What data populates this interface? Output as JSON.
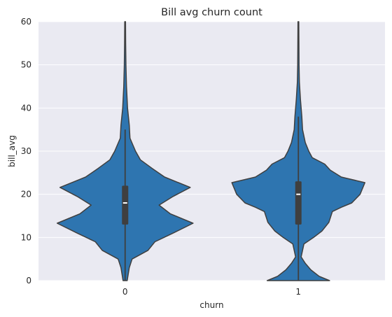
{
  "chart_data": {
    "type": "violin",
    "title": "Bill avg churn count",
    "xlabel": "churn",
    "ylabel": "bill_avg",
    "categories": [
      "0",
      "1"
    ],
    "ylim": [
      0,
      60
    ],
    "yticks": [
      "0",
      "10",
      "20",
      "30",
      "40",
      "50",
      "60"
    ],
    "grid": true,
    "colors": {
      "violin": "#2e75b0",
      "plot_bg": "#eaeaf2",
      "outline": "#3f3f3f"
    },
    "series": [
      {
        "category": "0",
        "q1": 13,
        "median": 18,
        "q3": 22,
        "whisker_low": 0,
        "whisker_high": 35,
        "density": [
          [
            0,
            0.03
          ],
          [
            1,
            0.04
          ],
          [
            3,
            0.06
          ],
          [
            5,
            0.1
          ],
          [
            7,
            0.33
          ],
          [
            9,
            0.43
          ],
          [
            11,
            0.69
          ],
          [
            13.3,
            0.98
          ],
          [
            15.5,
            0.65
          ],
          [
            17.5,
            0.49
          ],
          [
            19.5,
            0.69
          ],
          [
            21.6,
            0.94
          ],
          [
            24,
            0.57
          ],
          [
            26,
            0.39
          ],
          [
            28,
            0.22
          ],
          [
            30,
            0.15
          ],
          [
            33,
            0.07
          ],
          [
            36,
            0.06
          ],
          [
            40,
            0.035
          ],
          [
            45,
            0.02
          ],
          [
            50,
            0.012
          ],
          [
            55,
            0.008
          ],
          [
            60,
            0.006
          ]
        ]
      },
      {
        "category": "1",
        "q1": 13,
        "median": 20,
        "q3": 23,
        "whisker_low": 0,
        "whisker_high": 38,
        "density": [
          [
            0,
            0.45
          ],
          [
            1,
            0.3
          ],
          [
            2.5,
            0.18
          ],
          [
            4,
            0.1
          ],
          [
            5.5,
            0.04
          ],
          [
            7,
            0.06
          ],
          [
            8.5,
            0.08
          ],
          [
            10,
            0.22
          ],
          [
            11.5,
            0.34
          ],
          [
            13.5,
            0.44
          ],
          [
            16,
            0.49
          ],
          [
            17,
            0.62
          ],
          [
            18,
            0.77
          ],
          [
            20,
            0.89
          ],
          [
            22.7,
            0.96
          ],
          [
            24,
            0.62
          ],
          [
            25.6,
            0.46
          ],
          [
            27,
            0.38
          ],
          [
            28.5,
            0.2
          ],
          [
            30,
            0.15
          ],
          [
            32,
            0.1
          ],
          [
            35,
            0.06
          ],
          [
            38,
            0.05
          ],
          [
            42,
            0.03
          ],
          [
            46,
            0.015
          ],
          [
            50,
            0.01
          ],
          [
            55,
            0.008
          ],
          [
            60,
            0.006
          ]
        ]
      }
    ]
  }
}
